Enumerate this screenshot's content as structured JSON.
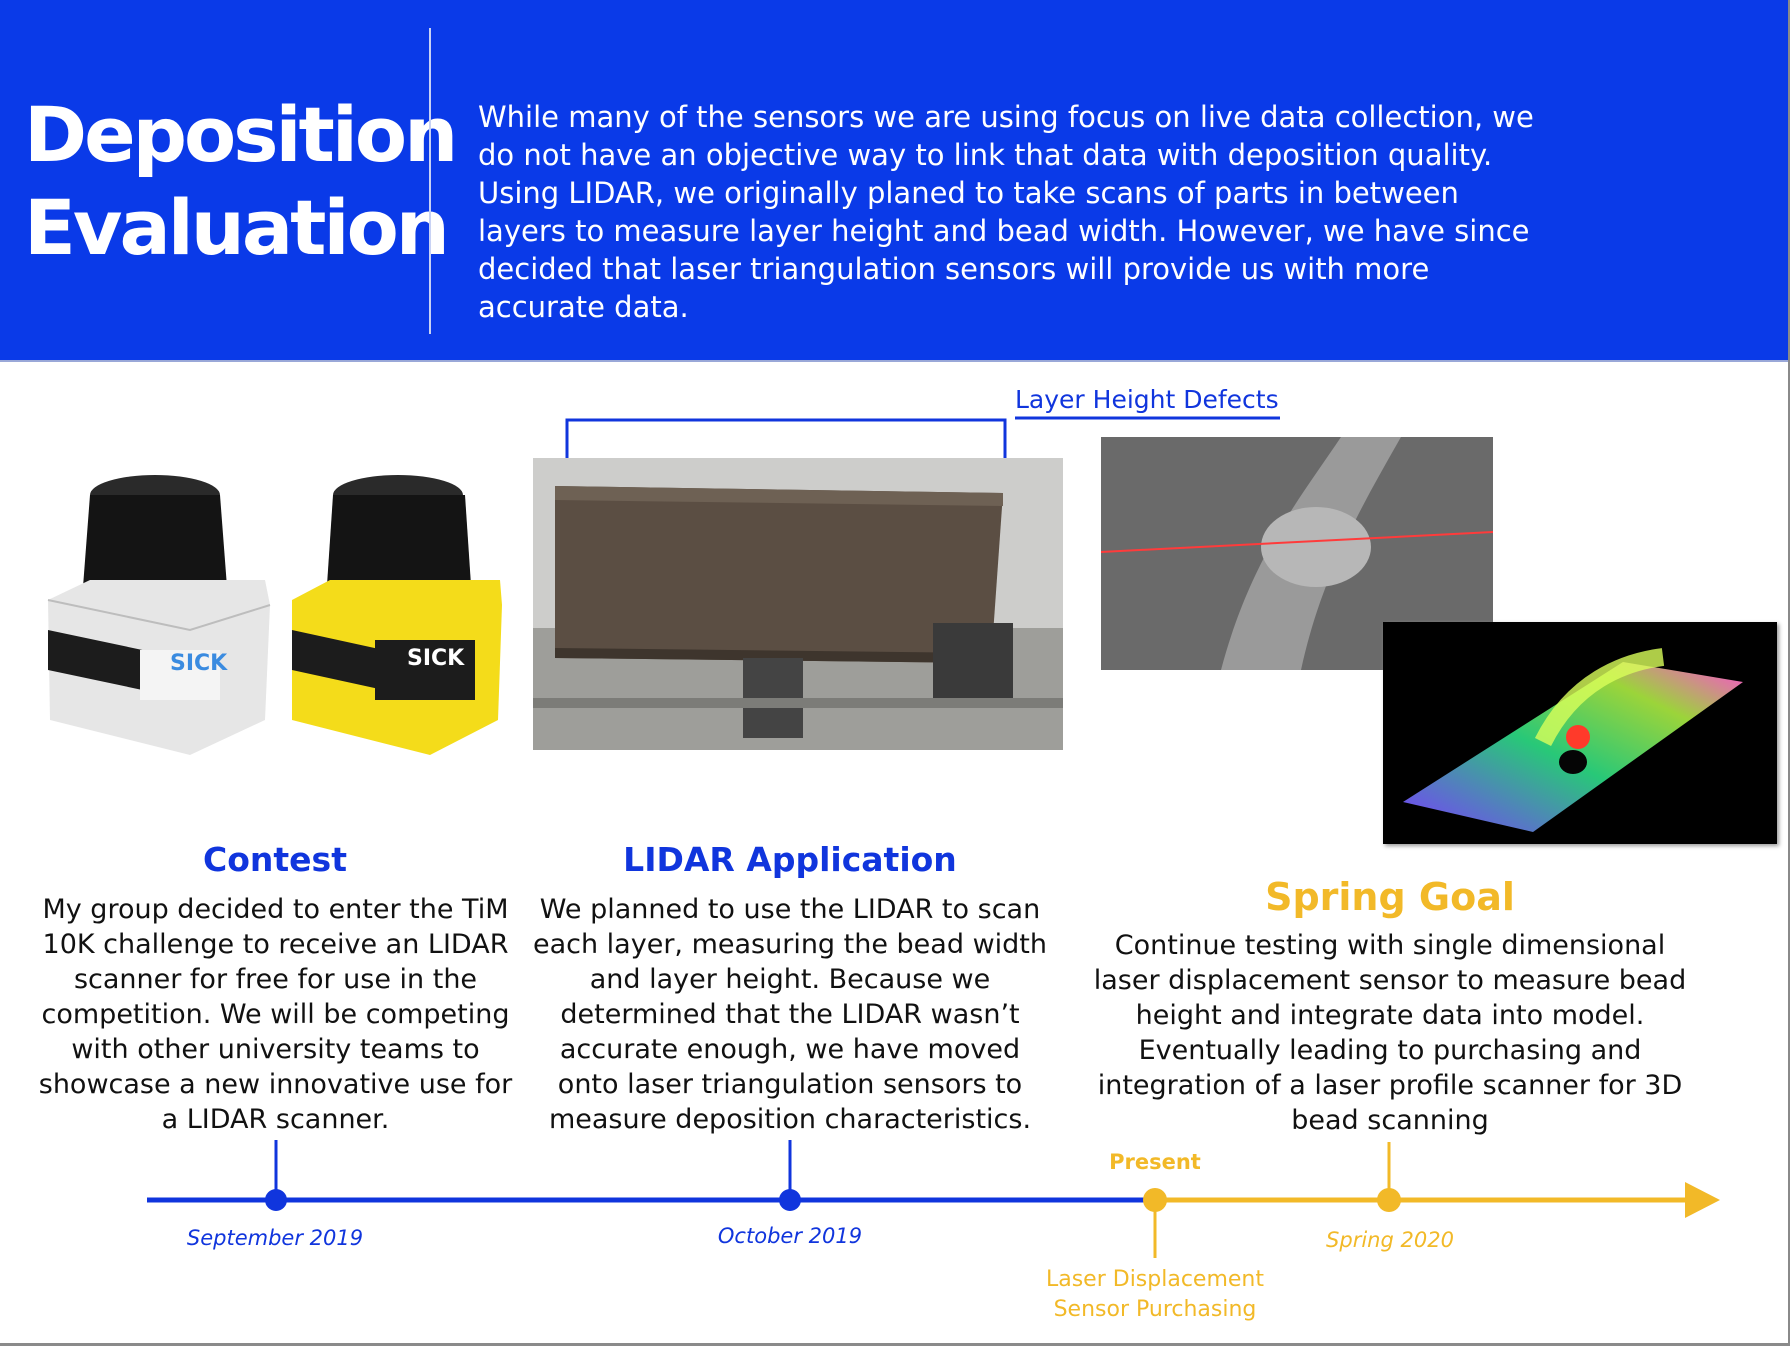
{
  "header": {
    "title_line1": "Deposition",
    "title_line2": "Evaluation",
    "intro": "While many of the sensors we are using focus on live data collection, we do not have an objective way to link that data with deposition quality. Using LIDAR, we originally planed to take scans of parts in between layers to measure layer height and bead width. However, we have since decided that laser triangulation sensors will provide us with more accurate data."
  },
  "images": {
    "sensor_brand": "SICK",
    "callout": "Layer Height Defects"
  },
  "columns": [
    {
      "title": "Contest",
      "text": "My group decided to enter the TiM 10K challenge to receive an LIDAR scanner for free for use in the competition. We will be competing with other university teams to showcase a new innovative use for a LIDAR scanner."
    },
    {
      "title": "LIDAR Application",
      "text": "We planned to use the LIDAR to scan each layer, measuring the bead width and layer height. Because we determined that the LIDAR wasn’t accurate enough, we have moved onto laser triangulation sensors to measure deposition characteristics."
    },
    {
      "title": "Spring Goal",
      "text": "Continue testing with single dimensional laser displacement sensor to measure bead height and integrate data into model. Eventually leading to purchasing and integration of a laser profile scanner for 3D bead scanning"
    }
  ],
  "timeline": {
    "september": "September 2019",
    "october": "October 2019",
    "present": "Present",
    "laser_purchase": "Laser Displacement Sensor Purchasing",
    "spring": "Spring 2020"
  },
  "colors": {
    "blue": "#0a3ae8",
    "gold": "#f2b928"
  }
}
